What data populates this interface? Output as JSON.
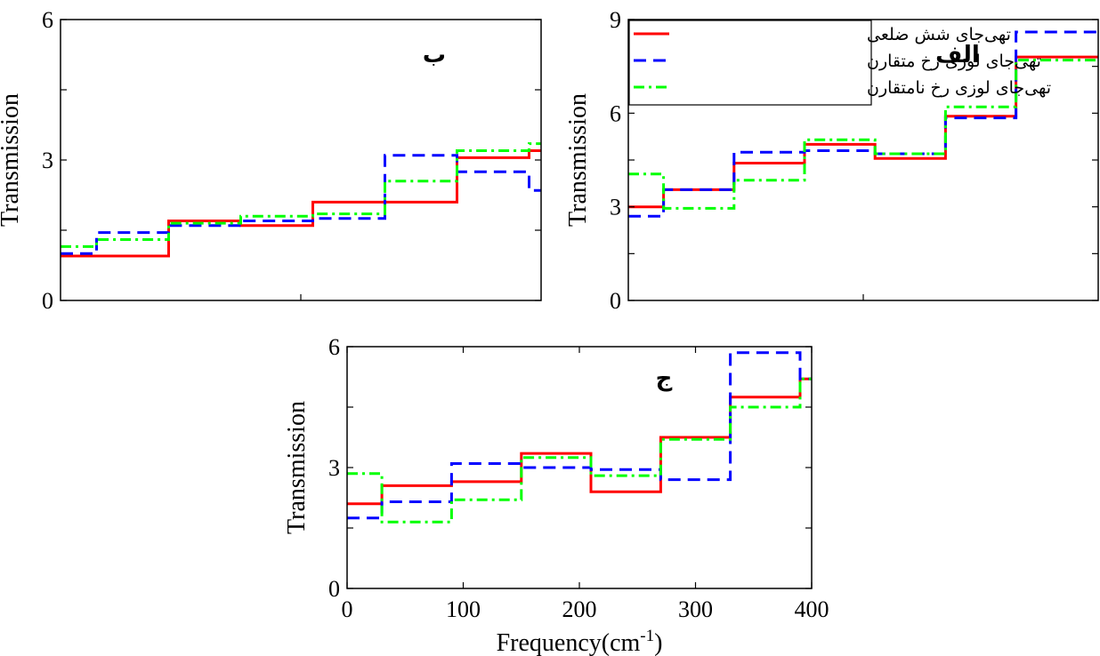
{
  "colors": {
    "series1": "#ff0000",
    "series2": "#0000ff",
    "series3": "#00ff00"
  },
  "legend": {
    "entries": [
      "تهی‌جای شش ضلعی",
      "تهی‌جای لوزی رخ متقارن",
      "تهی‌جای لوزی رخ نامتقارن"
    ],
    "placement": "top-left of panel الف"
  },
  "chart_data": [
    {
      "type": "line",
      "panel_label": "الف",
      "ylabel": "Transmission",
      "xlabel": "",
      "xlim": [
        0,
        400
      ],
      "ylim": [
        0,
        9
      ],
      "yticks": [
        0,
        3,
        6,
        9
      ],
      "ytick_labels": [
        "0",
        "3",
        "6",
        "9"
      ],
      "xticks": [
        0,
        100,
        200,
        300,
        400
      ],
      "xtick_labels": [],
      "step_edges": [
        0,
        30,
        90,
        150,
        210,
        270,
        330,
        400
      ],
      "series": [
        {
          "name": "تهی‌جای شش ضلعی",
          "values": [
            3.0,
            3.55,
            4.4,
            5.0,
            4.55,
            5.9,
            7.8
          ]
        },
        {
          "name": "تهی‌جای لوزی رخ متقارن",
          "values": [
            2.7,
            3.55,
            4.75,
            4.8,
            4.7,
            5.85,
            8.6,
            7.3
          ]
        },
        {
          "name": "تهی‌جای لوزی رخ نامتقارن",
          "values": [
            4.05,
            2.95,
            3.85,
            5.15,
            4.7,
            6.2,
            7.7,
            8.6
          ]
        }
      ]
    },
    {
      "type": "line",
      "panel_label": "ب",
      "ylabel": "Transmission",
      "xlabel": "",
      "xlim": [
        0,
        400
      ],
      "ylim": [
        0,
        6
      ],
      "yticks": [
        0,
        3,
        6
      ],
      "ytick_labels": [
        "0",
        "3",
        "6"
      ],
      "xticks": [
        0,
        100,
        200,
        300,
        400
      ],
      "xtick_labels": [],
      "step_edges": [
        0,
        30,
        90,
        150,
        210,
        270,
        330,
        390,
        400
      ],
      "series": [
        {
          "name": "تهی‌جای شش ضلعی",
          "values": [
            0.95,
            0.95,
            1.7,
            1.6,
            2.1,
            2.1,
            3.05,
            3.2
          ]
        },
        {
          "name": "تهی‌جای لوزی رخ متقارن",
          "values": [
            1.0,
            1.45,
            1.6,
            1.7,
            1.75,
            3.1,
            2.75,
            2.35
          ]
        },
        {
          "name": "تهی‌جای لوزی رخ نامتقارن",
          "values": [
            1.15,
            1.3,
            1.65,
            1.8,
            1.85,
            2.55,
            3.2,
            3.35
          ]
        }
      ]
    },
    {
      "type": "line",
      "panel_label": "ج",
      "ylabel": "Transmission",
      "xlabel": "Frequency(cm-1)",
      "xlabel_main": "Frequency(cm",
      "xlabel_sup": "-1",
      "xlabel_end": ")",
      "xlim": [
        0,
        400
      ],
      "ylim": [
        0,
        6
      ],
      "yticks": [
        0,
        3,
        6
      ],
      "ytick_labels": [
        "0",
        "3",
        "6"
      ],
      "xticks": [
        0,
        100,
        200,
        300,
        400
      ],
      "xtick_labels": [
        "0",
        "100",
        "200",
        "300",
        "400"
      ],
      "step_edges": [
        0,
        30,
        90,
        150,
        210,
        270,
        330,
        390,
        400
      ],
      "series": [
        {
          "name": "تهی‌جای شش ضلعی",
          "values": [
            2.1,
            2.55,
            2.65,
            3.35,
            2.4,
            3.75,
            4.75,
            5.2
          ]
        },
        {
          "name": "تهی‌جای لوزی رخ متقارن",
          "values": [
            1.75,
            2.15,
            3.1,
            3.0,
            2.95,
            2.7,
            5.85,
            5.2
          ]
        },
        {
          "name": "تهی‌جای لوزی رخ نامتقارن",
          "values": [
            2.85,
            1.65,
            2.2,
            3.25,
            2.8,
            3.7,
            4.5,
            5.2
          ]
        }
      ]
    }
  ]
}
